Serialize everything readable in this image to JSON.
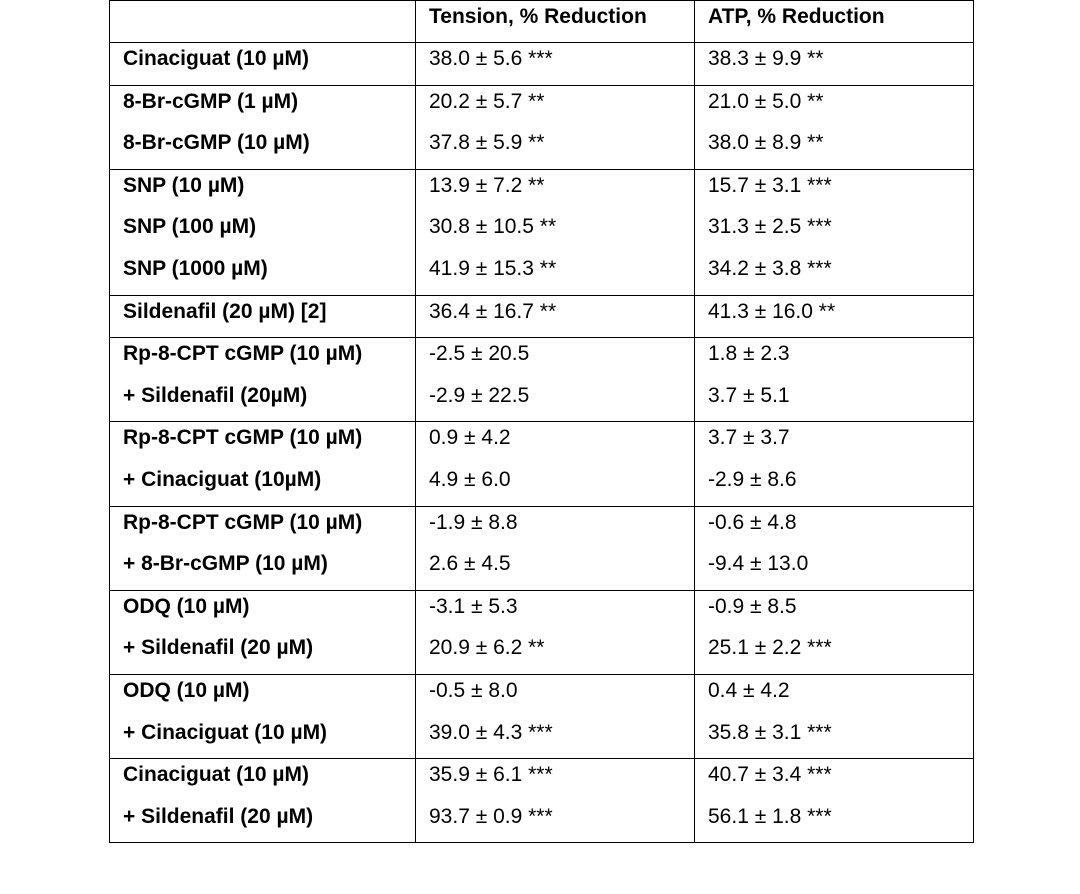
{
  "table": {
    "headers": [
      "",
      "Tension, % Reduction",
      "ATP, % Reduction"
    ],
    "groups": [
      {
        "rows": [
          {
            "agent": "Cinaciguat (10 µM)",
            "tension": "38.0 ± 5.6 ***",
            "atp": "38.3 ± 9.9 **"
          }
        ]
      },
      {
        "rows": [
          {
            "agent": "8-Br-cGMP (1 µM)",
            "tension": "20.2 ± 5.7 **",
            "atp": "21.0 ± 5.0 **"
          },
          {
            "agent": "8-Br-cGMP (10 µM)",
            "tension": "37.8 ± 5.9 **",
            "atp": "38.0 ± 8.9 **"
          }
        ]
      },
      {
        "rows": [
          {
            "agent": "SNP (10 µM)",
            "tension": "13.9 ± 7.2 **",
            "atp": "15.7 ± 3.1 ***"
          },
          {
            "agent": "SNP (100 µM)",
            "tension": "30.8 ± 10.5 **",
            "atp": "31.3 ± 2.5 ***"
          },
          {
            "agent": "SNP (1000 µM)",
            "tension": "41.9 ± 15.3 **",
            "atp": "34.2 ± 3.8 ***"
          }
        ]
      },
      {
        "rows": [
          {
            "agent": "Sildenafil (20 µM) [2]",
            "tension": "36.4 ± 16.7 **",
            "atp": "41.3 ± 16.0 **"
          }
        ]
      },
      {
        "rows": [
          {
            "agent": "Rp-8-CPT cGMP (10 µM)",
            "tension": "-2.5 ± 20.5",
            "atp": "1.8 ± 2.3"
          },
          {
            "agent": "+ Sildenafil (20µM)",
            "tension": "-2.9 ± 22.5",
            "atp": "3.7 ± 5.1"
          }
        ]
      },
      {
        "rows": [
          {
            "agent": "Rp-8-CPT cGMP (10 µM)",
            "tension": "0.9 ± 4.2",
            "atp": "3.7 ± 3.7"
          },
          {
            "agent": "+ Cinaciguat (10µM)",
            "tension": "4.9 ± 6.0",
            "atp": "-2.9 ± 8.6"
          }
        ]
      },
      {
        "rows": [
          {
            "agent": "Rp-8-CPT cGMP (10 µM)",
            "tension": "-1.9 ± 8.8",
            "atp": "-0.6 ± 4.8"
          },
          {
            "agent": "+ 8-Br-cGMP (10 µM)",
            "tension": "2.6 ± 4.5",
            "atp": "-9.4 ± 13.0"
          }
        ]
      },
      {
        "rows": [
          {
            "agent": "ODQ (10 µM)",
            "tension": "-3.1 ± 5.3",
            "atp": "-0.9 ± 8.5"
          },
          {
            "agent": "+ Sildenafil (20 µM)",
            "tension": "20.9 ± 6.2 **",
            "atp": "25.1 ± 2.2 ***"
          }
        ]
      },
      {
        "rows": [
          {
            "agent": "ODQ (10 µM)",
            "tension": "-0.5 ± 8.0",
            "atp": "0.4 ± 4.2"
          },
          {
            "agent": "+ Cinaciguat (10 µM)",
            "tension": "39.0 ± 4.3 ***",
            "atp": "35.8 ± 3.1 ***"
          }
        ]
      },
      {
        "rows": [
          {
            "agent": "Cinaciguat (10 µM)",
            "tension": "35.9 ± 6.1 ***",
            "atp": "40.7 ± 3.4 ***"
          },
          {
            "agent": "+ Sildenafil (20 µM)",
            "tension": "93.7 ± 0.9 ***",
            "atp": "56.1 ± 1.8 ***"
          }
        ]
      }
    ]
  }
}
